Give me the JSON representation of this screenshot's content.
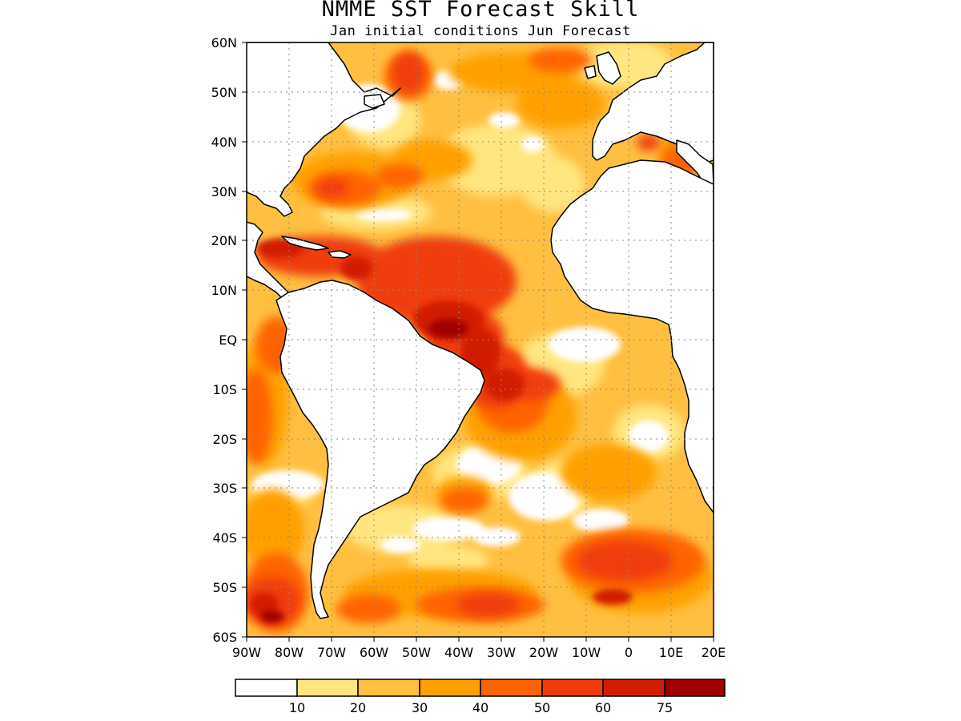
{
  "header": {
    "title": "NMME SST Forecast Skill",
    "subtitle": "Jan initial conditions   Jun Forecast"
  },
  "axes": {
    "lat_labels": [
      "60N",
      "50N",
      "40N",
      "30N",
      "20N",
      "10N",
      "EQ",
      "10S",
      "20S",
      "30S",
      "40S",
      "50S",
      "60S"
    ],
    "lon_labels": [
      "90W",
      "80W",
      "70W",
      "60W",
      "50W",
      "40W",
      "30W",
      "20W",
      "10W",
      "0",
      "10E",
      "20E"
    ]
  },
  "colorbar": {
    "labels": [
      "10",
      "20",
      "30",
      "40",
      "50",
      "60",
      "75"
    ],
    "colors": [
      "#ffffff",
      "#ffe680",
      "#ffbf40",
      "#ffa000",
      "#ff6400",
      "#f03c0a",
      "#d21e00",
      "#a00000"
    ]
  },
  "map": {
    "land_color": "#ffffff",
    "coast_color": "#000000",
    "grid": true
  }
}
